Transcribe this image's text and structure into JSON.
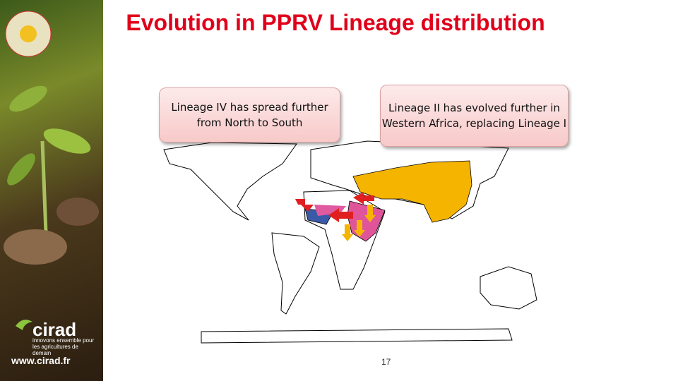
{
  "title": "Evolution in PPRV Lineage distribution",
  "callouts": [
    "Lineage IV has spread further from North to South",
    "Lineage II has evolved further in Western Africa, replacing Lineage I"
  ],
  "sidebar": {
    "brand": "cirad",
    "tagline": "innovons ensemble pour les agricultures de demain",
    "url": "www.cirad.fr"
  },
  "page_number": "17"
}
